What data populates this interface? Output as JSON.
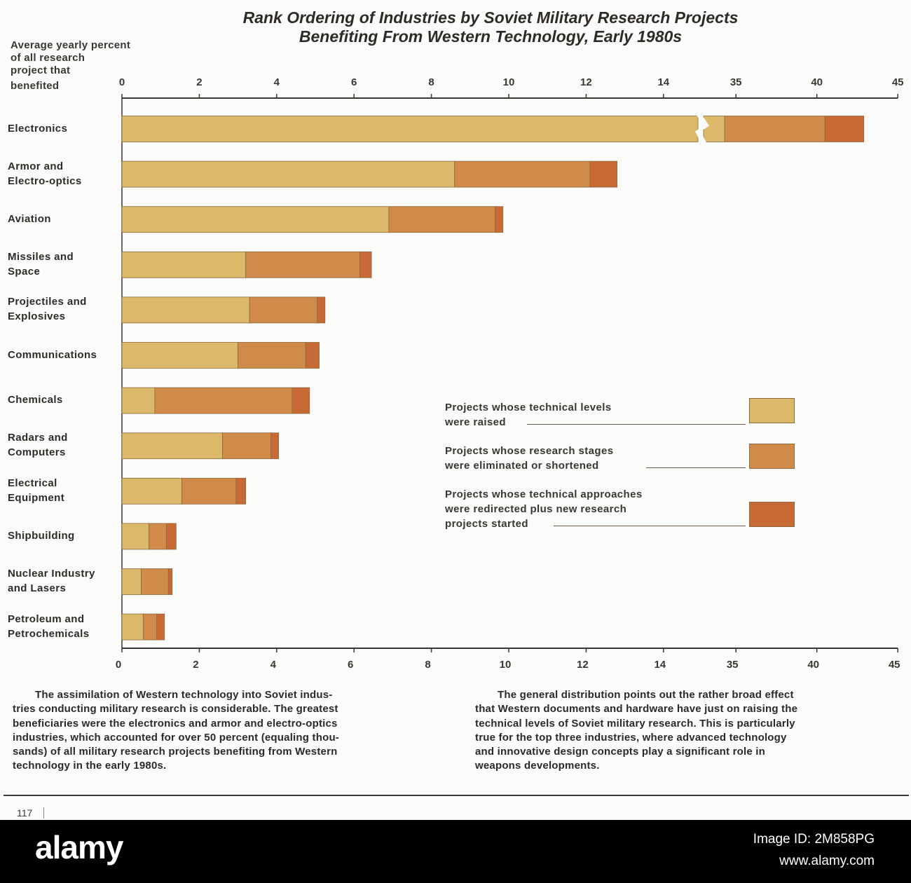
{
  "chart_data": {
    "type": "bar",
    "orientation": "horizontal",
    "stacked": true,
    "title": "Rank Ordering of Industries by Soviet Military Research Projects Benefiting From Western Technology, Early 1980s",
    "title_lines": [
      "Rank Ordering of Industries by Soviet Military Research Projects",
      "Benefiting From Western Technology, Early 1980s"
    ],
    "ylabel_lines": [
      "Average yearly percent",
      "of all research",
      "project  that",
      "benefited"
    ],
    "axis": {
      "broken": true,
      "segment_1_range": [
        0,
        15
      ],
      "segment_2_range": [
        33,
        45
      ],
      "tick_labels": [
        "0",
        "2",
        "4",
        "6",
        "8",
        "10",
        "12",
        "14",
        "35",
        "40",
        "45"
      ],
      "tick_values": [
        0,
        2,
        4,
        6,
        8,
        10,
        12,
        14,
        35,
        40,
        45
      ]
    },
    "categories": [
      {
        "lines": [
          "Electronics"
        ],
        "name": "Electronics"
      },
      {
        "lines": [
          "Armor and",
          "Electro-optics"
        ],
        "name": "Armor and Electro-optics"
      },
      {
        "lines": [
          "Aviation"
        ],
        "name": "Aviation"
      },
      {
        "lines": [
          "Missiles and",
          "Space"
        ],
        "name": "Missiles and Space"
      },
      {
        "lines": [
          "Projectiles and",
          "Explosives"
        ],
        "name": "Projectiles and Explosives"
      },
      {
        "lines": [
          "Communications"
        ],
        "name": "Communications"
      },
      {
        "lines": [
          "Chemicals"
        ],
        "name": "Chemicals"
      },
      {
        "lines": [
          "Radars and",
          "Computers"
        ],
        "name": "Radars and Computers"
      },
      {
        "lines": [
          "Electrical",
          "Equipment"
        ],
        "name": "Electrical Equipment"
      },
      {
        "lines": [
          "Shipbuilding"
        ],
        "name": "Shipbuilding"
      },
      {
        "lines": [
          "Nuclear Industry",
          "and Lasers"
        ],
        "name": "Nuclear Industry and Lasers"
      },
      {
        "lines": [
          "Petroleum and",
          "Petrochemicals"
        ],
        "name": "Petroleum and Petrochemicals"
      }
    ],
    "series": [
      {
        "name": "Projects whose technical levels were raised",
        "legend_lines": [
          "Projects whose technical levels",
          "were raised"
        ],
        "color": "#dcb96a",
        "values": [
          34.3,
          8.6,
          6.9,
          3.2,
          3.3,
          3.0,
          0.85,
          2.6,
          1.55,
          0.7,
          0.5,
          0.55
        ]
      },
      {
        "name": "Projects whose research stages were eliminated or shortened",
        "legend_lines": [
          "Projects whose research stages",
          "were eliminated or shortened"
        ],
        "color": "#d08a4a",
        "values": [
          6.2,
          3.5,
          2.75,
          2.95,
          1.75,
          1.75,
          3.55,
          1.25,
          1.4,
          0.45,
          0.7,
          0.35
        ]
      },
      {
        "name": "Projects whose technical approaches were redirected plus new research projects started",
        "legend_lines": [
          "Projects whose technical approaches",
          "were redirected plus new research",
          "projects started"
        ],
        "color": "#c76a36",
        "values": [
          2.4,
          0.7,
          0.2,
          0.3,
          0.2,
          0.35,
          0.45,
          0.2,
          0.25,
          0.25,
          0.1,
          0.2
        ]
      }
    ],
    "grid": false,
    "legend_position": "right-middle"
  },
  "captions": {
    "left_lines": [
      "The assimilation of Western technology into Soviet indus-",
      "tries conducting military research is considerable. The greatest",
      "beneficiaries were the electronics and armor and electro-optics",
      "industries, which accounted for over 50 percent (equaling thou-",
      "sands) of all military research projects benefiting from Western",
      "technology in the early 1980s."
    ],
    "right_lines": [
      "The general distribution points out the rather broad effect",
      "that Western documents and hardware have just on raising the",
      "technical levels of Soviet military research. This is particularly",
      "true for the top three industries, where advanced technology",
      "and innovative design concepts play a significant role in",
      "weapons developments."
    ]
  },
  "page_number": "117",
  "watermark": {
    "brand": "alamy",
    "image_id": "Image ID: 2M858PG",
    "url": "www.alamy.com"
  }
}
